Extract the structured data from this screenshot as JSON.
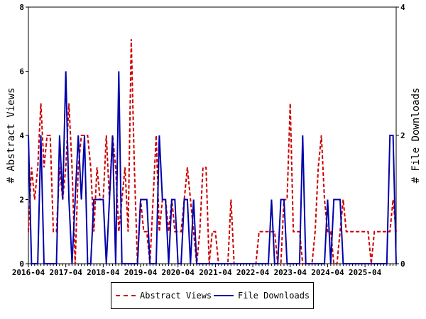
{
  "chart_data": {
    "type": "line",
    "title": "",
    "ylabel_left": "# Abstract Views",
    "ylabel_right": "# File Downloads",
    "xlabel": "",
    "ylim_left": [
      0,
      8
    ],
    "ylim_right": [
      0,
      4
    ],
    "yticks_left": [
      "0",
      "2",
      "4",
      "6",
      "8"
    ],
    "yticks_right": [
      "0",
      "2",
      "4"
    ],
    "x_tick_labels": [
      "2016-04",
      "2017-04",
      "2018-04",
      "2019-04",
      "2020-04",
      "2021-04",
      "2022-04",
      "2023-04",
      "2024-04",
      "2025-04"
    ],
    "x_start": "2016-04",
    "grid": false,
    "legend_position": "bottom",
    "series": [
      {
        "name": "Abstract Views",
        "axis": "left",
        "color": "#cc0000",
        "style": "dashed",
        "values": [
          1,
          3,
          2,
          3,
          5,
          3,
          4,
          4,
          1,
          1,
          3,
          2,
          3,
          5,
          3,
          0,
          3,
          4,
          4,
          4,
          3,
          1,
          3,
          2,
          2,
          4,
          2,
          4,
          3,
          1,
          2,
          3,
          1,
          7,
          3,
          0,
          2,
          1,
          1,
          0,
          2,
          4,
          1,
          2,
          2,
          1,
          2,
          1,
          1,
          1,
          2,
          3,
          2,
          1,
          0,
          1,
          3,
          3,
          0,
          1,
          1,
          0,
          0,
          0,
          0,
          2,
          0,
          0,
          0,
          0,
          0,
          0,
          0,
          0,
          1,
          1,
          1,
          1,
          1,
          1,
          0,
          0,
          2,
          2,
          5,
          1,
          1,
          1,
          0,
          0,
          0,
          0,
          1,
          3,
          4,
          2,
          1,
          1,
          0,
          0,
          1,
          2,
          1,
          1,
          1,
          1,
          1,
          1,
          1,
          1,
          0,
          1,
          1,
          1,
          1,
          1,
          1,
          2,
          1
        ]
      },
      {
        "name": "File Downloads",
        "axis": "right",
        "color": "#0000aa",
        "style": "solid",
        "values": [
          2,
          0,
          0,
          0,
          2,
          0,
          0,
          0,
          0,
          0,
          2,
          1,
          3,
          1,
          0,
          1,
          2,
          1,
          2,
          0,
          0,
          1,
          1,
          1,
          1,
          0,
          1,
          2,
          0,
          3,
          0,
          0,
          0,
          0,
          0,
          0,
          1,
          1,
          1,
          0,
          0,
          0,
          2,
          1,
          1,
          0,
          1,
          1,
          0,
          0,
          1,
          1,
          0,
          1,
          0,
          0,
          0,
          0,
          0,
          0,
          0,
          0,
          0,
          0,
          0,
          0,
          0,
          0,
          0,
          0,
          0,
          0,
          0,
          0,
          0,
          0,
          0,
          0,
          1,
          0,
          0,
          1,
          1,
          0,
          0,
          0,
          0,
          0,
          2,
          0,
          0,
          0,
          0,
          0,
          0,
          0,
          1,
          0,
          1,
          1,
          1,
          0,
          0,
          0,
          0,
          0,
          0,
          0,
          0,
          0,
          0,
          0,
          0,
          0,
          0,
          0,
          2,
          2,
          0
        ]
      }
    ]
  }
}
